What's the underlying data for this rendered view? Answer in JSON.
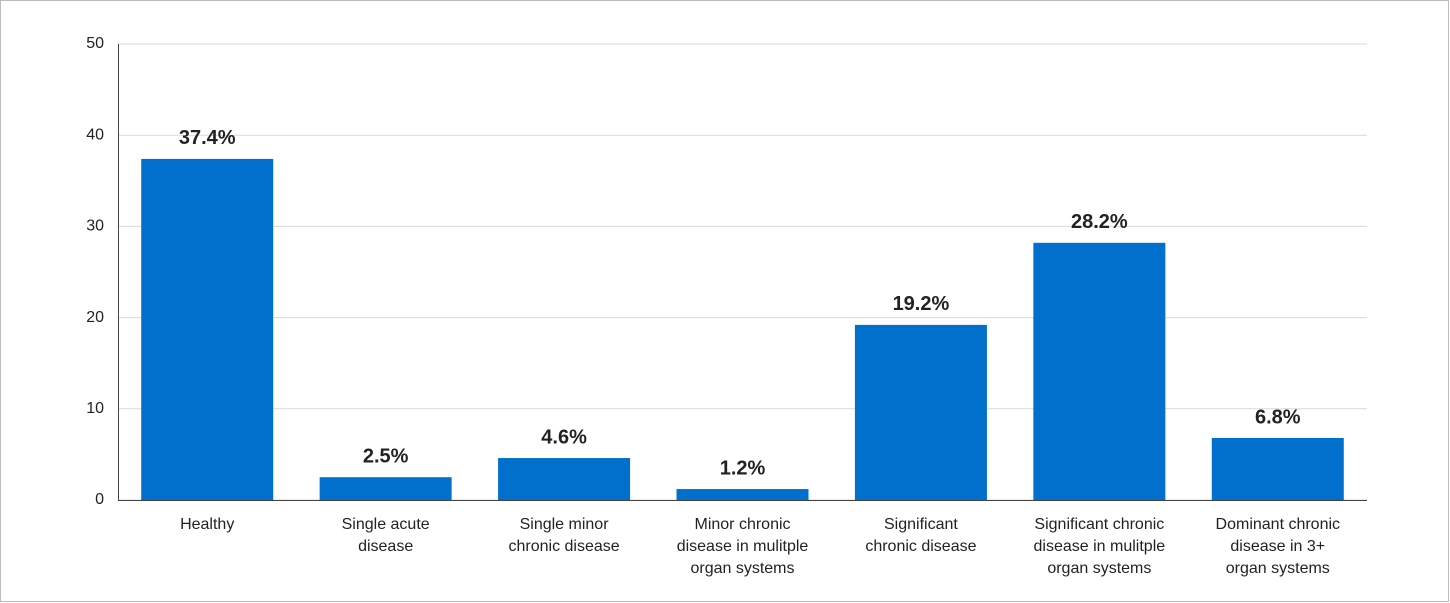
{
  "chart_data": {
    "type": "bar",
    "categories": [
      "Healthy",
      "Single acute\ndisease",
      "Single minor\nchronic disease",
      "Minor chronic\ndisease in mulitple\norgan systems",
      "Significant\nchronic disease",
      "Significant  chronic\ndisease in mulitple\norgan systems",
      "Dominant chronic\ndisease in 3+\norgan systems"
    ],
    "values": [
      37.4,
      2.5,
      4.6,
      1.2,
      19.2,
      28.2,
      6.8
    ],
    "value_labels": [
      "37.4%",
      "2.5%",
      "4.6%",
      "1.2%",
      "19.2%",
      "28.2%",
      "6.8%"
    ],
    "color": "#0070cc",
    "ylim": [
      0,
      50
    ],
    "yticks": [
      0,
      10,
      20,
      30,
      40,
      50
    ],
    "grid": true
  }
}
